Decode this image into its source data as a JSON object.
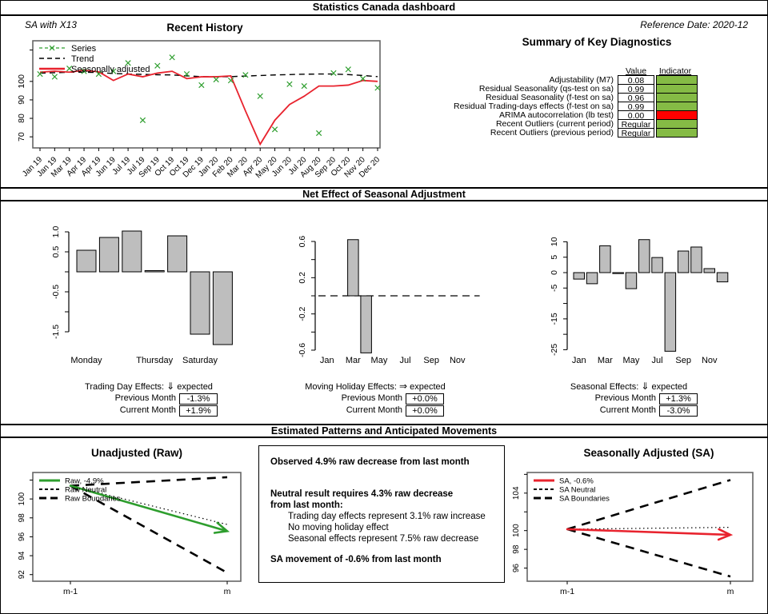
{
  "title_bar": "Statistics Canada dashboard",
  "top": {
    "sa_label": "SA with X13",
    "reference_date": "Reference Date: 2020-12",
    "diagnostics": {
      "title": "Summary of Key Diagnostics",
      "value_header": "Value",
      "indicator_header": "Indicator",
      "rows": [
        {
          "label": "Adjustability (M7)",
          "value": "0.08",
          "status": "green"
        },
        {
          "label": "Residual Seasonality (qs-test on sa)",
          "value": "0.99",
          "status": "green"
        },
        {
          "label": "Residual Seasonality (f-test on sa)",
          "value": "0.96",
          "status": "green"
        },
        {
          "label": "Residual Trading-days effects (f-test on sa)",
          "value": "0.99",
          "status": "green"
        },
        {
          "label": "ARIMA autocorrelation (lb test)",
          "value": "0.00",
          "status": "red"
        },
        {
          "label": "Recent Outliers (current period)",
          "value": "Regular",
          "status": "green"
        },
        {
          "label": "Recent Outliers (previous period)",
          "value": "Regular",
          "status": "green"
        }
      ],
      "status_colors": {
        "green": "#85bb45",
        "red": "#ff0000"
      }
    }
  },
  "section_headers": {
    "net_effect": "Net Effect of Seasonal Adjustment",
    "estimated": "Estimated Patterns and Anticipated Movements"
  },
  "effect_captions": [
    {
      "title": "Trading Day Effects:",
      "arrow": "⇓",
      "expected_label": "expected",
      "previous_label": "Previous Month",
      "previous_value": "-1.3%",
      "current_label": "Current Month",
      "current_value": "+1.9%"
    },
    {
      "title": "Moving Holiday Effects:",
      "arrow": "⇒",
      "expected_label": "expected",
      "previous_label": "Previous Month",
      "previous_value": "+0.0%",
      "current_label": "Current Month",
      "current_value": "+0.0%"
    },
    {
      "title": "Seasonal Effects:",
      "arrow": "⇓",
      "expected_label": "expected",
      "previous_label": "Previous Month",
      "previous_value": "+1.3%",
      "current_label": "Current Month",
      "current_value": "-3.0%"
    }
  ],
  "analysis_box": {
    "observed": "Observed 4.9% raw decrease from last month",
    "neutral_heading_line1": "Neutral result requires 4.3% raw decrease",
    "neutral_heading_line2": "from last month:",
    "details": [
      "Trading day effects represent 3.1% raw increase",
      "No moving holiday effect",
      "Seasonal effects represent 7.5% raw decrease"
    ],
    "sa_movement": "SA movement of -0.6% from last month"
  },
  "chart_data": [
    {
      "id": "recent_history",
      "type": "line",
      "title": "Recent History",
      "x": [
        "Jan 19",
        "Jan 19",
        "Mar 19",
        "Apr 19",
        "Apr 19",
        "Jun 19",
        "Jul 19",
        "Jul 19",
        "Sep 19",
        "Oct 19",
        "Oct 19",
        "Dec 19",
        "Jan 20",
        "Feb 20",
        "Mar 20",
        "Apr 20",
        "May 20",
        "Jun 20",
        "Jul 20",
        "Aug 20",
        "Sep 20",
        "Oct 20",
        "Nov 20",
        "Dec 20"
      ],
      "ylim": [
        64,
        122
      ],
      "yticks": [
        70,
        80,
        90,
        100
      ],
      "extra_unlabeled_tick": 117,
      "legend_position": "topleft",
      "series": [
        {
          "name": "Series",
          "style": "points",
          "color": "#2e9e2e",
          "values": [
            104,
            102.5,
            107,
            105.5,
            104,
            105.5,
            110,
            79,
            108.5,
            113,
            104,
            98,
            101,
            100.5,
            103.5,
            92,
            74,
            98.5,
            97.5,
            72,
            104.5,
            106.5,
            101.5,
            96.5
          ]
        },
        {
          "name": "Trend",
          "style": "dashed",
          "color": "#000000",
          "values": [
            104.5,
            104.7,
            105,
            105,
            104.8,
            104.3,
            104,
            103.8,
            103.6,
            103.5,
            103,
            102.6,
            102.5,
            102.6,
            102.9,
            103.2,
            103.5,
            103.7,
            103.9,
            104,
            104,
            103.7,
            103.2,
            102.6
          ]
        },
        {
          "name": "Seasonally adjusted",
          "style": "solid",
          "color": "#e8232e",
          "values": [
            105,
            105.5,
            105,
            106,
            105.2,
            100.5,
            104,
            102.5,
            104.5,
            105.5,
            101.5,
            102.5,
            102.5,
            103,
            84,
            66,
            79,
            87.5,
            92,
            97.5,
            97.5,
            98,
            100.5,
            100
          ]
        }
      ]
    },
    {
      "id": "trading_day_effects",
      "type": "bar",
      "categories": [
        "Monday",
        "Tuesday",
        "Wednesday",
        "Thursday",
        "Friday",
        "Saturday",
        "Sunday"
      ],
      "values": [
        0.54,
        0.86,
        1.02,
        0.03,
        0.9,
        -1.56,
        -1.82
      ],
      "yticks": [
        1.0,
        0.5,
        0.0,
        -0.5,
        -1.0,
        -1.5
      ],
      "ytick_labels": [
        "1.0",
        "0.5",
        "",
        "-0.5",
        "",
        "-1.5"
      ],
      "label_indices": [
        0,
        3,
        5
      ],
      "bar_color": "#bebebe"
    },
    {
      "id": "moving_holiday_effects",
      "type": "bar",
      "categories": [
        "Jan",
        "Feb",
        "Mar",
        "Apr",
        "May",
        "Jun",
        "Jul",
        "Aug",
        "Sep",
        "Oct",
        "Nov",
        "Dec"
      ],
      "values": [
        0,
        0,
        0.62,
        -0.63,
        0,
        0,
        0,
        0,
        0,
        0,
        0,
        0
      ],
      "yticks": [
        0.6,
        0.4,
        0.2,
        0.0,
        -0.2,
        -0.4,
        -0.6
      ],
      "ytick_labels": [
        "0.6",
        "",
        "0.2",
        "",
        "-0.2",
        "",
        "-0.6"
      ],
      "label_indices": [
        0,
        2,
        4,
        6,
        8,
        10
      ],
      "zero_dashed_line": true,
      "bar_color": "#bebebe"
    },
    {
      "id": "seasonal_effects",
      "type": "bar",
      "categories": [
        "Jan",
        "Feb",
        "Mar",
        "Apr",
        "May",
        "Jun",
        "Jul",
        "Aug",
        "Sep",
        "Oct",
        "Nov",
        "Dec"
      ],
      "values": [
        -2.1,
        -3.6,
        8.7,
        -0.3,
        -5.2,
        10.7,
        4.9,
        -25.5,
        7.0,
        8.3,
        1.3,
        -3.0
      ],
      "yticks": [
        10,
        5,
        0,
        -5,
        -10,
        -15,
        -20,
        -25
      ],
      "ytick_labels": [
        "10",
        "5",
        "0",
        "-5",
        "",
        "-15",
        "",
        "-25"
      ],
      "label_indices": [
        0,
        2,
        4,
        6,
        8,
        10
      ],
      "bar_color": "#bebebe"
    },
    {
      "id": "raw_movement",
      "type": "movement",
      "title": "Unadjusted (Raw)",
      "x_labels": [
        "m-1",
        "m"
      ],
      "ylim": [
        91.3,
        102.8
      ],
      "yticks": [
        92,
        94,
        96,
        98,
        100,
        102
      ],
      "ytick_labels": [
        "92",
        "94",
        "96",
        "98",
        "100",
        ""
      ],
      "start_value": 101.4,
      "arrow_end": 96.6,
      "neutral_end": 97.3,
      "upper_end": 102.3,
      "lower_end": 92.2,
      "arrow_color": "#2e9e2e",
      "legend": [
        "Raw, -4.9%",
        "Raw Neutral",
        "Raw Boundaries"
      ]
    },
    {
      "id": "sa_movement",
      "type": "movement",
      "title": "Seasonally Adjusted (SA)",
      "x_labels": [
        "m-1",
        "m"
      ],
      "ylim": [
        94.6,
        106.2
      ],
      "yticks": [
        96,
        98,
        100,
        102,
        104,
        106
      ],
      "ytick_labels": [
        "96",
        "98",
        "100",
        "",
        "104",
        ""
      ],
      "start_value": 100.15,
      "arrow_end": 99.55,
      "neutral_end": 100.35,
      "upper_end": 105.4,
      "lower_end": 95.1,
      "arrow_color": "#e8232e",
      "legend": [
        "SA, -0.6%",
        "SA Neutral",
        "SA Boundaries"
      ]
    }
  ]
}
